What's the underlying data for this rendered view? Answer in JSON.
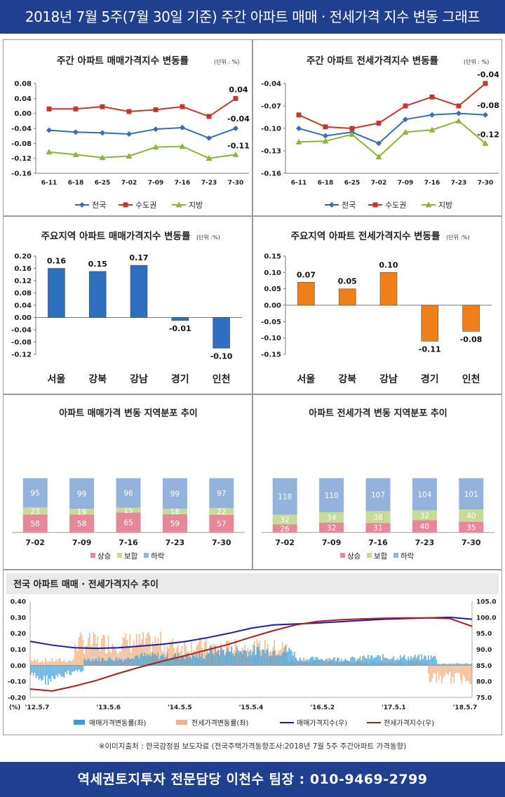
{
  "header": {
    "title": "2018년 7월 5주(7월 30일 기준) 주간 아파트 매매 · 전세가격 지수 변동 그래프"
  },
  "footer": {
    "source": "※이미지출처 : 한국감정원 보도자료 (전국주택가격동향조사:2018년 7월 5주 주간아파트 가격동향)",
    "contact": "역세권토지투자 전문담당 이천수 팀장 : 010-9469-2799"
  },
  "chart_data": [
    {
      "id": "weekly-sale",
      "type": "line",
      "title": "주간 아파트 매매가격지수 변동률",
      "unit": "(단위 : %)",
      "categories": [
        "6-11",
        "6-18",
        "6-25",
        "7-02",
        "7-09",
        "7-16",
        "7-23",
        "7-30"
      ],
      "ylim": [
        -0.16,
        0.08
      ],
      "yticks": [
        "0.08",
        "0.04",
        "0.00",
        "-0.04",
        "-0.08",
        "-0.12",
        "-0.16"
      ],
      "series": [
        {
          "name": "전국",
          "color": "#3b6cb5",
          "marker": "diamond",
          "values": [
            -0.045,
            -0.05,
            -0.052,
            -0.055,
            -0.042,
            -0.038,
            -0.066,
            -0.04
          ],
          "end_label": "-0.04"
        },
        {
          "name": "수도권",
          "color": "#c0392b",
          "marker": "square",
          "values": [
            0.012,
            0.012,
            0.018,
            0.005,
            0.01,
            0.018,
            -0.008,
            0.04
          ],
          "end_label": "0.04"
        },
        {
          "name": "지방",
          "color": "#8db53a",
          "marker": "triangle",
          "values": [
            -0.103,
            -0.11,
            -0.118,
            -0.114,
            -0.09,
            -0.088,
            -0.12,
            -0.11
          ],
          "end_label": "-0.11"
        }
      ]
    },
    {
      "id": "weekly-jeonse",
      "type": "line",
      "title": "주간 아파트 전세가격지수 변동률",
      "unit": "(단위 : %)",
      "categories": [
        "6-11",
        "6-18",
        "6-25",
        "7-02",
        "7-09",
        "7-16",
        "7-23",
        "7-30"
      ],
      "ylim": [
        -0.16,
        -0.04
      ],
      "yticks": [
        "-0.04",
        "-0.07",
        "-0.10",
        "-0.13",
        "-0.16"
      ],
      "series": [
        {
          "name": "전국",
          "color": "#3b6cb5",
          "marker": "diamond",
          "values": [
            -0.1,
            -0.11,
            -0.105,
            -0.12,
            -0.088,
            -0.082,
            -0.08,
            -0.082
          ],
          "end_label": "-0.08"
        },
        {
          "name": "수도권",
          "color": "#c0392b",
          "marker": "square",
          "values": [
            -0.082,
            -0.098,
            -0.1,
            -0.093,
            -0.07,
            -0.058,
            -0.07,
            -0.04
          ],
          "end_label": "-0.04"
        },
        {
          "name": "지방",
          "color": "#8db53a",
          "marker": "triangle",
          "values": [
            -0.118,
            -0.117,
            -0.108,
            -0.138,
            -0.105,
            -0.102,
            -0.09,
            -0.12
          ],
          "end_label": "-0.12"
        }
      ]
    },
    {
      "id": "region-sale",
      "type": "bar",
      "title": "주요지역 아파트 매매가격지수 변동률",
      "unit": "(단위 :%)",
      "categories": [
        "서울",
        "강북",
        "강남",
        "경기",
        "인천"
      ],
      "values": [
        0.16,
        0.15,
        0.17,
        -0.01,
        -0.1
      ],
      "labels": [
        "0.16",
        "0.15",
        "0.17",
        "-0.01",
        "-0.10"
      ],
      "ylim": [
        -0.12,
        0.2
      ],
      "yticks": [
        "0.20",
        "0.16",
        "0.12",
        "0.08",
        "0.04",
        "0.00",
        "-0.04",
        "-0.08",
        "-0.12"
      ],
      "color": "#2e6fbf"
    },
    {
      "id": "region-jeonse",
      "type": "bar",
      "title": "주요지역 아파트 전세가격지수 변동률",
      "unit": "(단위 :%)",
      "categories": [
        "서울",
        "강북",
        "강남",
        "경기",
        "인천"
      ],
      "values": [
        0.07,
        0.05,
        0.1,
        -0.11,
        -0.08
      ],
      "labels": [
        "0.07",
        "0.05",
        "0.10",
        "-0.11",
        "-0.08"
      ],
      "ylim": [
        -0.15,
        0.15
      ],
      "yticks": [
        "0.15",
        "0.10",
        "0.05",
        "0.00",
        "-0.05",
        "-0.10",
        "-0.15"
      ],
      "color": "#f07f1a"
    },
    {
      "id": "dist-sale",
      "type": "bar",
      "stacked": true,
      "title": "아파트 매매가격 변동 지역분포 추이",
      "categories": [
        "7-02",
        "7-09",
        "7-16",
        "7-23",
        "7-30"
      ],
      "series": [
        {
          "name": "상승",
          "color": "#e7879a",
          "values": [
            58,
            58,
            65,
            59,
            57
          ]
        },
        {
          "name": "보합",
          "color": "#c6dc96",
          "values": [
            23,
            19,
            15,
            18,
            22
          ]
        },
        {
          "name": "하락",
          "color": "#93b3dc",
          "values": [
            95,
            99,
            96,
            99,
            97
          ]
        }
      ]
    },
    {
      "id": "dist-jeonse",
      "type": "bar",
      "stacked": true,
      "title": "아파트 전세가격 변동 지역분포 추이",
      "categories": [
        "7-02",
        "7-09",
        "7-16",
        "7-23",
        "7-30"
      ],
      "series": [
        {
          "name": "상승",
          "color": "#e7879a",
          "values": [
            26,
            32,
            31,
            40,
            35
          ]
        },
        {
          "name": "보합",
          "color": "#c6dc96",
          "values": [
            32,
            34,
            38,
            32,
            40
          ]
        },
        {
          "name": "하락",
          "color": "#93b3dc",
          "values": [
            118,
            110,
            107,
            104,
            101
          ]
        }
      ]
    },
    {
      "id": "national-trend",
      "type": "line",
      "title": "전국 아파트 매매 · 전세가격지수 추이",
      "y_unit": "(%)",
      "x_tick_labels": [
        "'12.5.7",
        "'13.5.6",
        "'14.5.5",
        "'15.5.4",
        "'16.5.2",
        "'17.5.1",
        "'18.5.7"
      ],
      "ylim_left": [
        -0.2,
        0.4
      ],
      "yticks_left": [
        "0.40",
        "0.30",
        "0.20",
        "0.10",
        "0.00",
        "-0.10",
        "-0.20"
      ],
      "ylim_right": [
        75.0,
        105.0
      ],
      "yticks_right": [
        "105.0",
        "100.0",
        "95.0",
        "90.0",
        "85.0",
        "80.0",
        "75.0"
      ],
      "series": [
        {
          "name": "매매가격변동률(좌)",
          "axis": "left",
          "kind": "bar",
          "color": "#3c9bd6"
        },
        {
          "name": "전세가격변동률(좌)",
          "axis": "left",
          "kind": "bar",
          "color": "#f2b184"
        },
        {
          "name": "매매가격지수(우)",
          "axis": "right",
          "kind": "line",
          "color": "#1c1ca8",
          "t": [
            0,
            0.05,
            0.1,
            0.15,
            0.2,
            0.25,
            0.3,
            0.35,
            0.4,
            0.45,
            0.5,
            0.55,
            0.6,
            0.65,
            0.7,
            0.75,
            0.8,
            0.85,
            0.9,
            0.95,
            1.0
          ],
          "values": [
            92.5,
            91.3,
            90.5,
            90.3,
            90.5,
            91.0,
            91.6,
            92.4,
            93.6,
            95.0,
            96.6,
            97.6,
            97.9,
            98.2,
            98.6,
            99.0,
            99.4,
            99.6,
            99.8,
            100.0,
            99.4
          ]
        },
        {
          "name": "전세가격지수(우)",
          "axis": "right",
          "kind": "line",
          "color": "#b01c1c",
          "t": [
            0,
            0.05,
            0.1,
            0.15,
            0.2,
            0.25,
            0.3,
            0.35,
            0.4,
            0.45,
            0.5,
            0.55,
            0.6,
            0.65,
            0.7,
            0.75,
            0.8,
            0.85,
            0.9,
            0.95,
            1.0
          ],
          "values": [
            77.6,
            77.0,
            78.5,
            80.3,
            82.5,
            84.5,
            86.3,
            88.0,
            89.8,
            91.6,
            93.8,
            95.8,
            97.6,
            98.7,
            99.2,
            99.5,
            99.7,
            99.8,
            99.8,
            99.6,
            97.2
          ]
        }
      ]
    }
  ]
}
